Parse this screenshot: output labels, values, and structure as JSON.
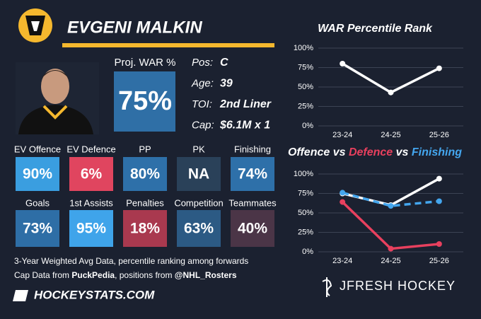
{
  "header": {
    "name": "EVGENI MALKIN"
  },
  "proj_war": {
    "label": "Proj. WAR %",
    "value": "75%",
    "color": "#2f6fa6"
  },
  "info": [
    {
      "label": "Pos:",
      "value": "C"
    },
    {
      "label": "Age:",
      "value": "39"
    },
    {
      "label": "TOI:",
      "value": "2nd Liner"
    },
    {
      "label": "Cap:",
      "value": "$6.1M x 1"
    }
  ],
  "tile_rows": [
    [
      {
        "label": "EV Offence",
        "value": "90%",
        "color": "#3a9ee0"
      },
      {
        "label": "EV Defence",
        "value": "6%",
        "color": "#e0455f"
      },
      {
        "label": "PP",
        "value": "80%",
        "color": "#2e70a9"
      },
      {
        "label": "PK",
        "value": "NA",
        "color": "#2a4159"
      },
      {
        "label": "Finishing",
        "value": "74%",
        "color": "#2e70a9"
      }
    ],
    [
      {
        "label": "Goals",
        "value": "73%",
        "color": "#2e6ea6"
      },
      {
        "label": "1st Assists",
        "value": "95%",
        "color": "#3fa4ea"
      },
      {
        "label": "Penalties",
        "value": "18%",
        "color": "#a9394f"
      },
      {
        "label": "Competition",
        "value": "63%",
        "color": "#2c5a84"
      },
      {
        "label": "Teammates",
        "value": "40%",
        "color": "#4b3547"
      }
    ]
  ],
  "footer": {
    "line1": "3-Year Weighted Avg Data, percentile ranking among forwards",
    "line2": [
      {
        "text": "Cap Data from ",
        "bold": false
      },
      {
        "text": "PuckPedia",
        "bold": true
      },
      {
        "text": ", positions from ",
        "bold": false
      },
      {
        "text": "@NHL_Rosters",
        "bold": true
      }
    ],
    "site": "HOCKEYSTATS.COM",
    "brand": "JFRESH HOCKEY"
  },
  "chart_data": [
    {
      "type": "line",
      "title": "WAR Percentile Rank",
      "categories": [
        "23-24",
        "24-25",
        "25-26"
      ],
      "series": [
        {
          "name": null,
          "color": "#ffffff",
          "dash": false,
          "values": [
            80,
            43,
            74
          ]
        }
      ],
      "ylim": [
        0,
        100
      ],
      "yticks": [
        {
          "value": 0,
          "label": "0%"
        },
        {
          "value": 25,
          "label": "25%"
        },
        {
          "value": 50,
          "label": "50%"
        },
        {
          "value": 75,
          "label": "75%"
        },
        {
          "value": 100,
          "label": "100%"
        }
      ],
      "grid": true
    },
    {
      "type": "line",
      "title_joiner": " vs ",
      "categories": [
        "23-24",
        "24-25",
        "25-26"
      ],
      "series": [
        {
          "name": "Offence",
          "color": "#ffffff",
          "dash": false,
          "values": [
            75,
            60,
            94
          ]
        },
        {
          "name": "Defence",
          "color": "#e8405e",
          "dash": false,
          "values": [
            64,
            4,
            10
          ]
        },
        {
          "name": "Finishing",
          "color": "#44a6ee",
          "dash": true,
          "values": [
            76,
            59,
            65
          ]
        }
      ],
      "ylim": [
        0,
        100
      ],
      "yticks": [
        {
          "value": 0,
          "label": "0%"
        },
        {
          "value": 25,
          "label": "25%"
        },
        {
          "value": 50,
          "label": "50%"
        },
        {
          "value": 75,
          "label": "75%"
        },
        {
          "value": 100,
          "label": "100%"
        }
      ],
      "grid": true
    }
  ]
}
